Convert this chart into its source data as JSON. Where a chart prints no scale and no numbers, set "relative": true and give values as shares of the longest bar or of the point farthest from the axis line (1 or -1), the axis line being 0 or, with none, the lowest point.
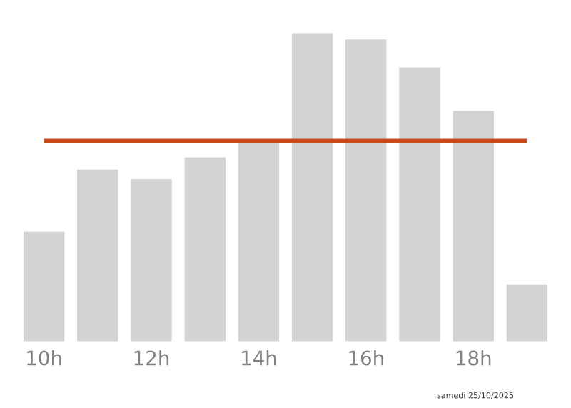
{
  "chart_data": {
    "type": "bar",
    "relative": true,
    "categories": [
      "10h",
      null,
      "12h",
      null,
      "14h",
      null,
      "16h",
      null,
      "18h",
      null
    ],
    "values": [
      0.36,
      0.56,
      0.53,
      0.6,
      0.65,
      1,
      0.98,
      0.89,
      0.75,
      0.19
    ],
    "color": "#d3d3d3",
    "ref_lines": [
      {
        "axis": "y",
        "value": 0.65,
        "color": "#cc4a1a"
      }
    ],
    "annotations": [
      "samedi 25/10/2025"
    ],
    "grid": false,
    "legend": false
  }
}
